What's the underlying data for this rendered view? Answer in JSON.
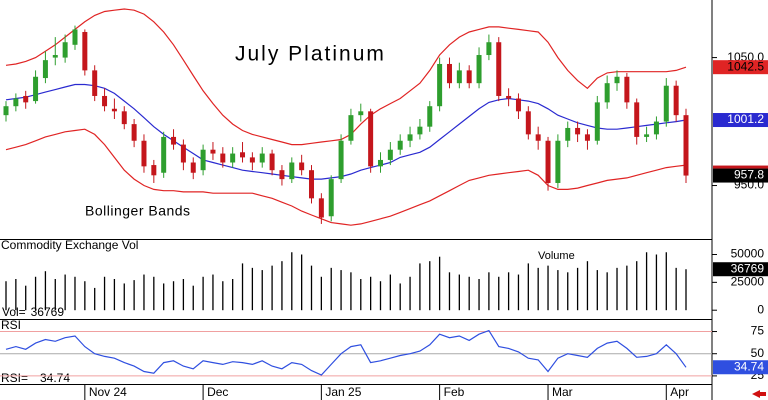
{
  "chart_data": {
    "type": "candlestick",
    "title": "July Platinum",
    "annotation": "Bollinger Bands",
    "xticks": [
      {
        "value": 8,
        "label": "Nov 24"
      },
      {
        "value": 20,
        "label": "Dec"
      },
      {
        "value": 32,
        "label": "Jan 25"
      },
      {
        "value": 44,
        "label": "Feb"
      },
      {
        "value": 55,
        "label": "Mar"
      },
      {
        "value": 67,
        "label": "Apr"
      }
    ],
    "ylim": [
      909,
      1095
    ],
    "yticks": [
      {
        "value": 950,
        "label": "950.0"
      },
      {
        "value": 1050,
        "label": "1050.0"
      }
    ],
    "up_color": "#2e9e2e",
    "down_color": "#c4161c",
    "candles": {
      "open": [
        1005,
        1012,
        1020,
        1016,
        1034,
        1050,
        1050,
        1060,
        1070,
        1040,
        1020,
        1010,
        1008,
        998,
        985,
        966,
        960,
        988,
        982,
        968,
        962,
        978,
        975,
        968,
        976,
        972,
        968,
        975,
        962,
        955,
        968,
        962,
        940,
        926,
        955,
        985,
        1005,
        1008,
        965,
        970,
        978,
        985,
        990,
        996,
        1012,
        1045,
        1030,
        1040,
        1030,
        1052,
        1062,
        1020,
        1018,
        1008,
        990,
        985,
        952,
        985,
        995,
        990,
        985,
        1015,
        1030,
        1035,
        1015,
        988,
        990,
        1000,
        1028,
        1005
      ],
      "high": [
        1016,
        1022,
        1024,
        1040,
        1055,
        1066,
        1068,
        1075,
        1072,
        1044,
        1026,
        1018,
        1012,
        1002,
        990,
        970,
        992,
        994,
        986,
        972,
        982,
        984,
        980,
        980,
        984,
        976,
        980,
        978,
        966,
        972,
        974,
        966,
        944,
        958,
        990,
        1010,
        1014,
        1010,
        976,
        984,
        990,
        996,
        1002,
        1016,
        1050,
        1050,
        1046,
        1044,
        1058,
        1068,
        1066,
        1026,
        1022,
        1012,
        996,
        988,
        990,
        1000,
        1000,
        994,
        1020,
        1036,
        1040,
        1038,
        1018,
        996,
        1004,
        1034,
        1032,
        1010
      ],
      "low": [
        1000,
        1008,
        1010,
        1014,
        1030,
        1044,
        1046,
        1056,
        1036,
        1016,
        1008,
        1002,
        994,
        980,
        960,
        952,
        956,
        978,
        962,
        955,
        958,
        970,
        964,
        964,
        968,
        962,
        964,
        958,
        950,
        952,
        958,
        936,
        920,
        922,
        952,
        982,
        1000,
        960,
        960,
        966,
        974,
        980,
        986,
        992,
        1008,
        1026,
        1026,
        1026,
        1026,
        1048,
        1016,
        1012,
        1002,
        986,
        978,
        946,
        948,
        980,
        984,
        978,
        982,
        1010,
        1024,
        1010,
        982,
        984,
        986,
        996,
        1000,
        952
      ],
      "close": [
        1012,
        1018,
        1015,
        1035,
        1048,
        1052,
        1062,
        1072,
        1040,
        1020,
        1012,
        1008,
        998,
        985,
        965,
        958,
        988,
        982,
        968,
        960,
        978,
        975,
        968,
        975,
        972,
        968,
        975,
        962,
        955,
        968,
        962,
        940,
        925,
        955,
        985,
        1005,
        1008,
        965,
        970,
        978,
        985,
        990,
        996,
        1012,
        1045,
        1030,
        1040,
        1030,
        1052,
        1062,
        1020,
        1018,
        1008,
        990,
        985,
        952,
        985,
        995,
        990,
        985,
        1015,
        1030,
        1035,
        1015,
        988,
        990,
        1000,
        1028,
        1005,
        957.8
      ]
    },
    "upper": {
      "color": "#e02424",
      "values": [
        1044,
        1045,
        1047,
        1050,
        1055,
        1060,
        1066,
        1072,
        1078,
        1083,
        1086,
        1087,
        1088,
        1087,
        1084,
        1078,
        1070,
        1060,
        1048,
        1036,
        1024,
        1014,
        1005,
        998,
        993,
        990,
        988,
        986,
        984,
        982,
        982,
        983,
        984,
        985,
        986,
        990,
        998,
        1005,
        1010,
        1014,
        1018,
        1024,
        1030,
        1040,
        1052,
        1060,
        1066,
        1070,
        1072,
        1074,
        1074,
        1073,
        1072,
        1071,
        1070,
        1062,
        1050,
        1040,
        1032,
        1026,
        1034,
        1038,
        1039,
        1039,
        1039,
        1039,
        1039,
        1039,
        1040,
        1042.5
      ]
    },
    "middle": {
      "color": "#2a2ad0",
      "values": [
        1017,
        1018,
        1019,
        1021,
        1023,
        1025,
        1027,
        1029,
        1029,
        1028,
        1026,
        1022,
        1016,
        1010,
        1003,
        996,
        990,
        985,
        980,
        975,
        970,
        968,
        966,
        964,
        962,
        961,
        960,
        959,
        958,
        957,
        956,
        955,
        955,
        956,
        957,
        959,
        962,
        964,
        966,
        968,
        972,
        974,
        976,
        980,
        986,
        992,
        998,
        1004,
        1010,
        1015,
        1017,
        1018,
        1017,
        1016,
        1014,
        1010,
        1005,
        1002,
        999,
        997,
        995,
        994,
        994,
        995,
        996,
        997,
        998,
        999,
        1000,
        1001.2
      ]
    },
    "lower": {
      "color": "#e02424",
      "values": [
        978,
        980,
        982,
        985,
        988,
        990,
        992,
        993,
        994,
        990,
        982,
        972,
        962,
        955,
        950,
        947,
        946,
        946,
        945,
        945,
        945,
        944,
        944,
        944,
        944,
        944,
        942,
        940,
        937,
        934,
        930,
        927,
        924,
        921,
        920,
        919,
        920,
        922,
        924,
        926,
        929,
        932,
        935,
        938,
        942,
        946,
        950,
        954,
        956,
        958,
        959,
        960,
        961,
        962,
        958,
        950,
        947,
        947,
        948,
        950,
        952,
        954,
        955,
        956,
        958,
        960,
        962,
        964,
        965,
        966
      ]
    },
    "volume": {
      "title": "Commodity Exchange Vol",
      "label": "Volume",
      "readout": "Vol=",
      "color": "#000000",
      "ylim": [
        -7000,
        63000
      ],
      "yticks": [
        0,
        25000,
        50000
      ],
      "values": [
        26000,
        28000,
        22000,
        30000,
        35000,
        28000,
        32000,
        30000,
        26000,
        20000,
        30000,
        28000,
        24000,
        27000,
        32000,
        30000,
        24000,
        26000,
        28000,
        22000,
        30000,
        32000,
        26000,
        28000,
        42000,
        38000,
        36000,
        40000,
        44000,
        52000,
        50000,
        40000,
        30000,
        38000,
        36000,
        34000,
        28000,
        30000,
        26000,
        32000,
        24000,
        30000,
        42000,
        44000,
        48000,
        34000,
        32000,
        30000,
        28000,
        34000,
        30000,
        34000,
        32000,
        42000,
        38000,
        40000,
        36000,
        34000,
        38000,
        44000,
        36000,
        34000,
        38000,
        40000,
        44000,
        52000,
        50000,
        52000,
        38000,
        36769
      ]
    },
    "rsi": {
      "title": "RSI",
      "readout": "RSI=",
      "color": "#2f4fe0",
      "ylim": [
        17,
        88
      ],
      "yticks": [
        25,
        50,
        75
      ],
      "values": [
        55,
        58,
        55,
        62,
        66,
        64,
        68,
        70,
        58,
        50,
        47,
        45,
        40,
        36,
        30,
        28,
        40,
        42,
        36,
        33,
        42,
        40,
        38,
        41,
        40,
        38,
        42,
        36,
        33,
        40,
        38,
        31,
        26,
        38,
        50,
        58,
        60,
        40,
        42,
        45,
        48,
        50,
        53,
        60,
        72,
        68,
        70,
        65,
        72,
        76,
        58,
        56,
        52,
        45,
        43,
        30,
        45,
        50,
        48,
        46,
        56,
        62,
        64,
        56,
        46,
        47,
        50,
        60,
        50,
        34.74
      ]
    }
  }
}
